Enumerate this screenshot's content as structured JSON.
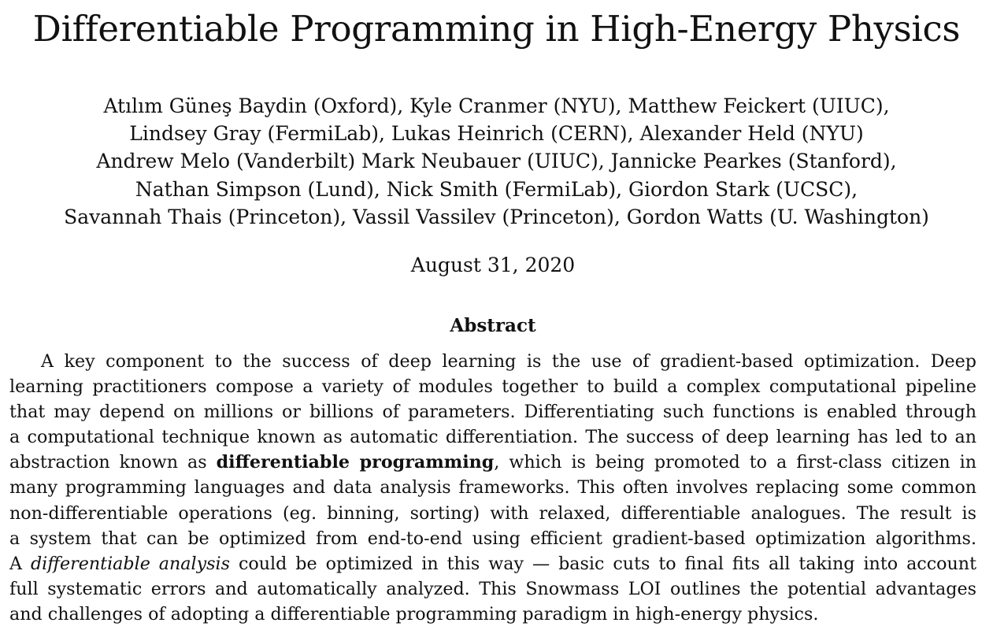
{
  "paper": {
    "title": "Differentiable Programming in High-Energy Physics",
    "author_lines": [
      "Atılım Güneş Baydin (Oxford), Kyle Cranmer (NYU), Matthew Feickert (UIUC),",
      "Lindsey Gray (FermiLab), Lukas Heinrich (CERN), Alexander Held (NYU)",
      "Andrew Melo (Vanderbilt) Mark Neubauer (UIUC), Jannicke Pearkes (Stanford),",
      "Nathan Simpson (Lund), Nick Smith (FermiLab), Giordon Stark (UCSC),",
      "Savannah Thais (Princeton), Vassil Vassilev (Princeton), Gordon Watts (U. Washington)"
    ],
    "date": "August 31, 2020",
    "abstract": {
      "heading": "Abstract",
      "lines": [
        "A key component to the success of deep learning is the use of gradient-based optimization. Deep",
        "learning practitioners compose a variety of modules together to build a complex computational pipeline",
        "that may depend on millions or billions of parameters. Differentiating such functions is enabled through",
        "a computational technique known as automatic differentiation. The success of deep learning has led to an",
        {
          "before": "abstraction known as ",
          "bold": "differentiable programming",
          "after": ", which is being promoted to a first-class citizen in"
        },
        "many programming languages and data analysis frameworks. This often involves replacing some common",
        "non-differentiable operations (eg. binning, sorting) with relaxed, differentiable analogues. The result is",
        "a system that can be optimized from end-to-end using efficient gradient-based optimization algorithms.",
        {
          "before": "A ",
          "italic": "differentiable analysis",
          "after": " could be optimized in this way — basic cuts to final fits all taking into account"
        },
        "full systematic errors and automatically analyzed. This Snowmass LOI outlines the potential advantages",
        "and challenges of adopting a differentiable programming paradigm in high-energy physics."
      ]
    }
  }
}
